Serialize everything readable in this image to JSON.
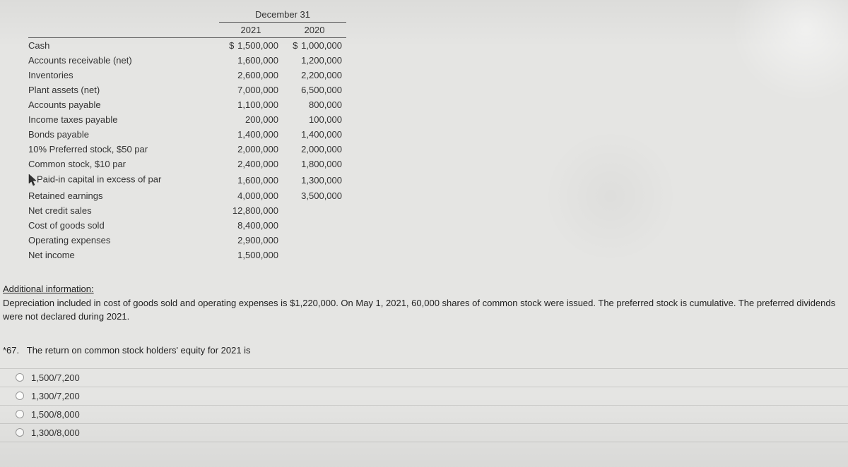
{
  "table": {
    "super_header": "December 31",
    "col1": "2021",
    "col2": "2020",
    "rows": [
      {
        "label": "Cash",
        "v1": "1,500,000",
        "v2": "1,000,000",
        "cur": true
      },
      {
        "label": "Accounts receivable (net)",
        "v1": "1,600,000",
        "v2": "1,200,000"
      },
      {
        "label": "Inventories",
        "v1": "2,600,000",
        "v2": "2,200,000"
      },
      {
        "label": "Plant assets (net)",
        "v1": "7,000,000",
        "v2": "6,500,000"
      },
      {
        "label": "Accounts payable",
        "v1": "1,100,000",
        "v2": "800,000"
      },
      {
        "label": "Income taxes payable",
        "v1": "200,000",
        "v2": "100,000"
      },
      {
        "label": "Bonds payable",
        "v1": "1,400,000",
        "v2": "1,400,000"
      },
      {
        "label": "10% Preferred stock, $50 par",
        "v1": "2,000,000",
        "v2": "2,000,000"
      },
      {
        "label": "Common stock, $10 par",
        "v1": "2,400,000",
        "v2": "1,800,000"
      },
      {
        "label": "Paid-in capital in excess of par",
        "v1": "1,600,000",
        "v2": "1,300,000",
        "cursor": true
      },
      {
        "label": "Retained earnings",
        "v1": "4,000,000",
        "v2": "3,500,000"
      },
      {
        "label": "Net credit sales",
        "v1": "12,800,000",
        "v2": ""
      },
      {
        "label": "Cost of goods sold",
        "v1": "8,400,000",
        "v2": ""
      },
      {
        "label": "Operating expenses",
        "v1": "2,900,000",
        "v2": ""
      },
      {
        "label": "Net income",
        "v1": "1,500,000",
        "v2": ""
      }
    ]
  },
  "additional": {
    "heading": "Additional information:",
    "text": "Depreciation included in cost of goods sold and operating expenses is $1,220,000. On May 1, 2021, 60,000 shares of common stock were issued. The preferred stock is cumulative. The preferred dividends were not declared during 2021."
  },
  "question": {
    "number": "*67.",
    "text": "The return on common stock holders' equity for 2021 is"
  },
  "options": [
    "1,500/7,200",
    "1,300/7,200",
    "1,500/8,000",
    "1,300/8,000"
  ],
  "colors": {
    "bg": "#e5e5e3",
    "text": "#222",
    "border": "#c9c9c7"
  }
}
